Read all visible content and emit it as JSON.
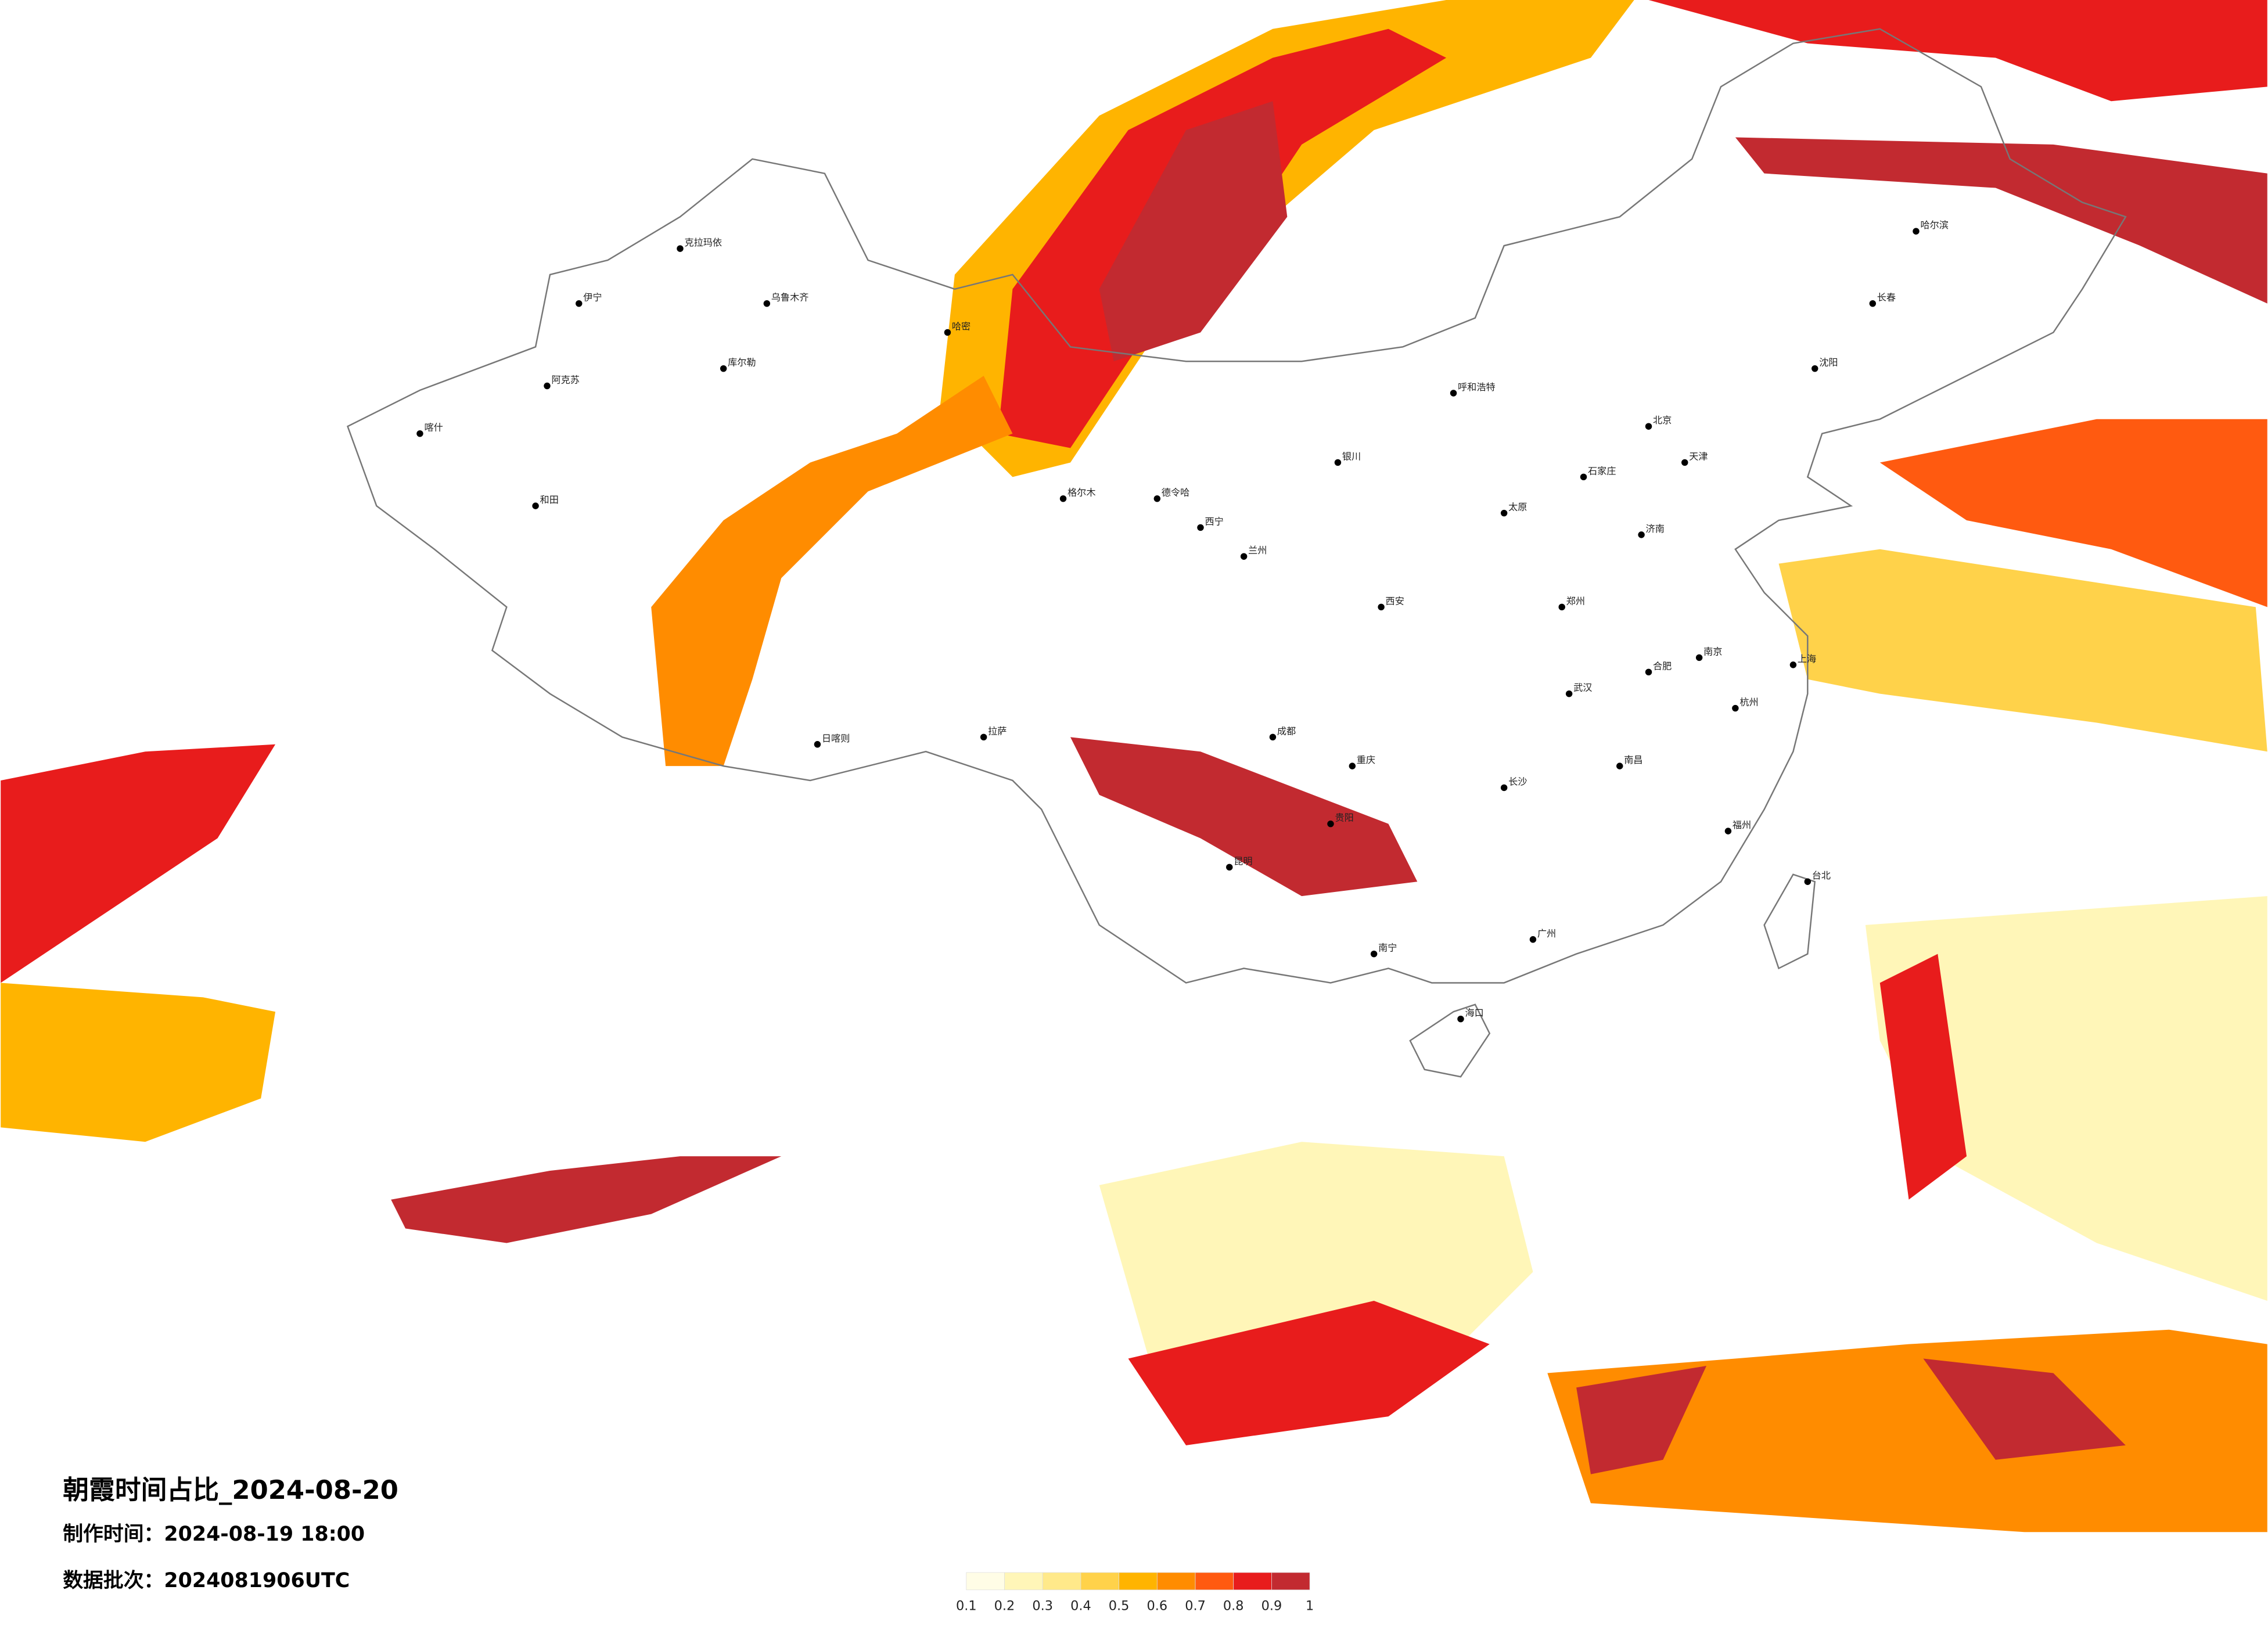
{
  "title": "朝霞时间占比_2024-08-20",
  "make_time": "制作时间：2024-08-19 18:00",
  "batch": "数据批次：2024081906UTC",
  "legend": {
    "ticks": [
      0.1,
      0.2,
      0.3,
      0.4,
      0.5,
      0.6,
      0.7,
      0.8,
      0.9,
      1
    ],
    "colors": [
      "#fffde6",
      "#fff6b8",
      "#ffe98a",
      "#ffd24a",
      "#ffb400",
      "#ff8c00",
      "#ff5a10",
      "#e81c1c",
      "#c22a30"
    ]
  },
  "cities": [
    "伊宁",
    "克拉玛依",
    "乌鲁木齐",
    "哈密",
    "库尔勒",
    "阿克苏",
    "喀什",
    "和田",
    "格尔木",
    "德令哈",
    "西宁",
    "兰州",
    "银川",
    "呼和浩特",
    "北京",
    "天津",
    "石家庄",
    "太原",
    "郑州",
    "西安",
    "成都",
    "重庆",
    "贵阳",
    "昆明",
    "南宁",
    "广州",
    "长沙",
    "武汉",
    "南昌",
    "福州",
    "杭州",
    "上海",
    "南京",
    "合肥",
    "济南",
    "沈阳",
    "长春",
    "哈尔滨",
    "拉萨",
    "日喀则",
    "海口",
    "台北"
  ]
}
